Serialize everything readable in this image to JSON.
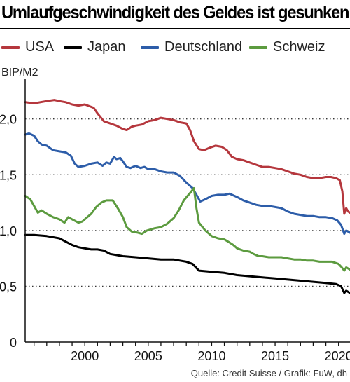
{
  "chart_data": {
    "type": "line",
    "title": "Umlaufgeschwindigkeit des Geldes ist gesunken",
    "ylabel": "BIP/M2",
    "xlabel": "",
    "xlim": [
      1995.3,
      2020.9
    ],
    "ylim": [
      0,
      2.35
    ],
    "yticks": [
      0,
      0.5,
      1.0,
      1.5,
      2.0
    ],
    "ytick_labels": [
      "0",
      "0,5",
      "1,0",
      "1,5",
      "2,0"
    ],
    "xticks": [
      2000,
      2005,
      2010,
      2015,
      2020
    ],
    "xtick_labels": [
      "2000",
      "2005",
      "2010",
      "2015",
      "2020"
    ],
    "grid": "horizontal dotted",
    "legend_position": "top",
    "series": [
      {
        "name": "USA",
        "color": "#b5373d",
        "points": [
          [
            1995.3,
            2.15
          ],
          [
            1996,
            2.14
          ],
          [
            1997,
            2.16
          ],
          [
            1997.6,
            2.17
          ],
          [
            1998,
            2.16
          ],
          [
            1998.5,
            2.15
          ],
          [
            1999,
            2.13
          ],
          [
            1999.5,
            2.12
          ],
          [
            2000,
            2.13
          ],
          [
            2000.7,
            2.1
          ],
          [
            2001,
            2.05
          ],
          [
            2001.5,
            1.98
          ],
          [
            2002,
            1.96
          ],
          [
            2002.5,
            1.94
          ],
          [
            2003,
            1.91
          ],
          [
            2003.3,
            1.9
          ],
          [
            2003.7,
            1.93
          ],
          [
            2004,
            1.94
          ],
          [
            2004.5,
            1.95
          ],
          [
            2005,
            1.98
          ],
          [
            2005.5,
            1.99
          ],
          [
            2006,
            2.01
          ],
          [
            2006.5,
            2.0
          ],
          [
            2007,
            1.99
          ],
          [
            2007.5,
            1.97
          ],
          [
            2008,
            1.96
          ],
          [
            2008.3,
            1.9
          ],
          [
            2008.6,
            1.8
          ],
          [
            2009,
            1.73
          ],
          [
            2009.4,
            1.72
          ],
          [
            2009.8,
            1.74
          ],
          [
            2010.3,
            1.76
          ],
          [
            2010.8,
            1.75
          ],
          [
            2011.2,
            1.72
          ],
          [
            2011.6,
            1.66
          ],
          [
            2012,
            1.64
          ],
          [
            2012.5,
            1.63
          ],
          [
            2013,
            1.61
          ],
          [
            2013.5,
            1.59
          ],
          [
            2014,
            1.57
          ],
          [
            2014.5,
            1.57
          ],
          [
            2015,
            1.56
          ],
          [
            2015.5,
            1.55
          ],
          [
            2016,
            1.53
          ],
          [
            2016.5,
            1.51
          ],
          [
            2017,
            1.5
          ],
          [
            2017.5,
            1.48
          ],
          [
            2018,
            1.47
          ],
          [
            2018.5,
            1.47
          ],
          [
            2019,
            1.48
          ],
          [
            2019.4,
            1.48
          ],
          [
            2019.8,
            1.47
          ],
          [
            2020.1,
            1.45
          ],
          [
            2020.3,
            1.35
          ],
          [
            2020.45,
            1.15
          ],
          [
            2020.6,
            1.2
          ],
          [
            2020.75,
            1.17
          ],
          [
            2020.9,
            1.16
          ]
        ]
      },
      {
        "name": "Japan",
        "color": "#000000",
        "points": [
          [
            1995.3,
            0.96
          ],
          [
            1996,
            0.96
          ],
          [
            1997,
            0.95
          ],
          [
            1998,
            0.93
          ],
          [
            1998.5,
            0.9
          ],
          [
            1999,
            0.87
          ],
          [
            1999.5,
            0.85
          ],
          [
            2000,
            0.84
          ],
          [
            2000.5,
            0.83
          ],
          [
            2001,
            0.83
          ],
          [
            2001.5,
            0.82
          ],
          [
            2002,
            0.79
          ],
          [
            2002.5,
            0.78
          ],
          [
            2003,
            0.77
          ],
          [
            2004,
            0.76
          ],
          [
            2005,
            0.75
          ],
          [
            2006,
            0.74
          ],
          [
            2007,
            0.74
          ],
          [
            2007.5,
            0.73
          ],
          [
            2008,
            0.72
          ],
          [
            2008.5,
            0.7
          ],
          [
            2009,
            0.64
          ],
          [
            2010,
            0.63
          ],
          [
            2011,
            0.62
          ],
          [
            2012,
            0.6
          ],
          [
            2013,
            0.59
          ],
          [
            2014,
            0.58
          ],
          [
            2015,
            0.57
          ],
          [
            2016,
            0.56
          ],
          [
            2017,
            0.55
          ],
          [
            2018,
            0.54
          ],
          [
            2019,
            0.53
          ],
          [
            2019.8,
            0.52
          ],
          [
            2020.2,
            0.5
          ],
          [
            2020.45,
            0.44
          ],
          [
            2020.6,
            0.46
          ],
          [
            2020.9,
            0.44
          ]
        ]
      },
      {
        "name": "Deutschland",
        "color": "#2d5da9",
        "points": [
          [
            1995.3,
            1.86
          ],
          [
            1995.6,
            1.87
          ],
          [
            1996,
            1.85
          ],
          [
            1996.3,
            1.8
          ],
          [
            1996.6,
            1.77
          ],
          [
            1997,
            1.76
          ],
          [
            1997.5,
            1.72
          ],
          [
            1998,
            1.71
          ],
          [
            1998.5,
            1.7
          ],
          [
            1998.9,
            1.67
          ],
          [
            1999.2,
            1.6
          ],
          [
            1999.5,
            1.57
          ],
          [
            2000,
            1.58
          ],
          [
            2000.5,
            1.6
          ],
          [
            2001,
            1.61
          ],
          [
            2001.4,
            1.58
          ],
          [
            2001.7,
            1.61
          ],
          [
            2002,
            1.6
          ],
          [
            2002.3,
            1.66
          ],
          [
            2002.5,
            1.64
          ],
          [
            2002.8,
            1.65
          ],
          [
            2003,
            1.62
          ],
          [
            2003.3,
            1.57
          ],
          [
            2003.6,
            1.56
          ],
          [
            2004,
            1.58
          ],
          [
            2004.4,
            1.56
          ],
          [
            2004.7,
            1.57
          ],
          [
            2005,
            1.55
          ],
          [
            2005.5,
            1.55
          ],
          [
            2006,
            1.53
          ],
          [
            2006.5,
            1.52
          ],
          [
            2007,
            1.52
          ],
          [
            2007.5,
            1.49
          ],
          [
            2008,
            1.43
          ],
          [
            2008.5,
            1.38
          ],
          [
            2008.8,
            1.32
          ],
          [
            2009.1,
            1.26
          ],
          [
            2009.5,
            1.28
          ],
          [
            2010,
            1.31
          ],
          [
            2010.5,
            1.32
          ],
          [
            2011,
            1.32
          ],
          [
            2011.4,
            1.33
          ],
          [
            2011.8,
            1.31
          ],
          [
            2012,
            1.3
          ],
          [
            2012.5,
            1.27
          ],
          [
            2013,
            1.25
          ],
          [
            2013.5,
            1.23
          ],
          [
            2014,
            1.22
          ],
          [
            2014.5,
            1.22
          ],
          [
            2015,
            1.21
          ],
          [
            2015.5,
            1.2
          ],
          [
            2016,
            1.17
          ],
          [
            2016.5,
            1.15
          ],
          [
            2017,
            1.14
          ],
          [
            2017.5,
            1.13
          ],
          [
            2018,
            1.13
          ],
          [
            2018.5,
            1.12
          ],
          [
            2019,
            1.12
          ],
          [
            2019.5,
            1.11
          ],
          [
            2019.9,
            1.09
          ],
          [
            2020.2,
            1.05
          ],
          [
            2020.45,
            0.97
          ],
          [
            2020.6,
            1.0
          ],
          [
            2020.75,
            0.99
          ],
          [
            2020.9,
            0.98
          ]
        ]
      },
      {
        "name": "Schweiz",
        "color": "#5c9b3f",
        "points": [
          [
            1995.3,
            1.31
          ],
          [
            1995.7,
            1.28
          ],
          [
            1996,
            1.22
          ],
          [
            1996.3,
            1.16
          ],
          [
            1996.6,
            1.18
          ],
          [
            1997,
            1.15
          ],
          [
            1997.5,
            1.12
          ],
          [
            1998,
            1.1
          ],
          [
            1998.4,
            1.07
          ],
          [
            1998.7,
            1.12
          ],
          [
            1999,
            1.1
          ],
          [
            1999.5,
            1.07
          ],
          [
            1999.8,
            1.08
          ],
          [
            2000.2,
            1.12
          ],
          [
            2000.5,
            1.15
          ],
          [
            2000.9,
            1.21
          ],
          [
            2001.3,
            1.25
          ],
          [
            2001.7,
            1.27
          ],
          [
            2002.2,
            1.27
          ],
          [
            2002.6,
            1.2
          ],
          [
            2003,
            1.12
          ],
          [
            2003.3,
            1.03
          ],
          [
            2003.7,
            0.99
          ],
          [
            2004.2,
            0.98
          ],
          [
            2004.5,
            0.97
          ],
          [
            2004.9,
            1.0
          ],
          [
            2005.5,
            1.02
          ],
          [
            2006,
            1.03
          ],
          [
            2006.5,
            1.06
          ],
          [
            2007,
            1.11
          ],
          [
            2007.4,
            1.18
          ],
          [
            2007.8,
            1.27
          ],
          [
            2008.1,
            1.31
          ],
          [
            2008.4,
            1.35
          ],
          [
            2008.6,
            1.38
          ],
          [
            2008.8,
            1.2
          ],
          [
            2009,
            1.07
          ],
          [
            2009.5,
            1.0
          ],
          [
            2010,
            0.95
          ],
          [
            2010.5,
            0.93
          ],
          [
            2011,
            0.92
          ],
          [
            2011.3,
            0.9
          ],
          [
            2011.7,
            0.87
          ],
          [
            2012,
            0.84
          ],
          [
            2012.5,
            0.82
          ],
          [
            2013,
            0.81
          ],
          [
            2013.3,
            0.79
          ],
          [
            2013.7,
            0.77
          ],
          [
            2014,
            0.77
          ],
          [
            2014.5,
            0.76
          ],
          [
            2015,
            0.76
          ],
          [
            2015.5,
            0.76
          ],
          [
            2016,
            0.75
          ],
          [
            2016.5,
            0.74
          ],
          [
            2017,
            0.74
          ],
          [
            2017.5,
            0.73
          ],
          [
            2018,
            0.73
          ],
          [
            2018.5,
            0.72
          ],
          [
            2019,
            0.72
          ],
          [
            2019.5,
            0.72
          ],
          [
            2020,
            0.7
          ],
          [
            2020.25,
            0.67
          ],
          [
            2020.45,
            0.64
          ],
          [
            2020.6,
            0.67
          ],
          [
            2020.75,
            0.66
          ],
          [
            2020.9,
            0.65
          ]
        ]
      }
    ],
    "source": "Quelle: Credit Suisse / Grafik: FuW, dh"
  }
}
